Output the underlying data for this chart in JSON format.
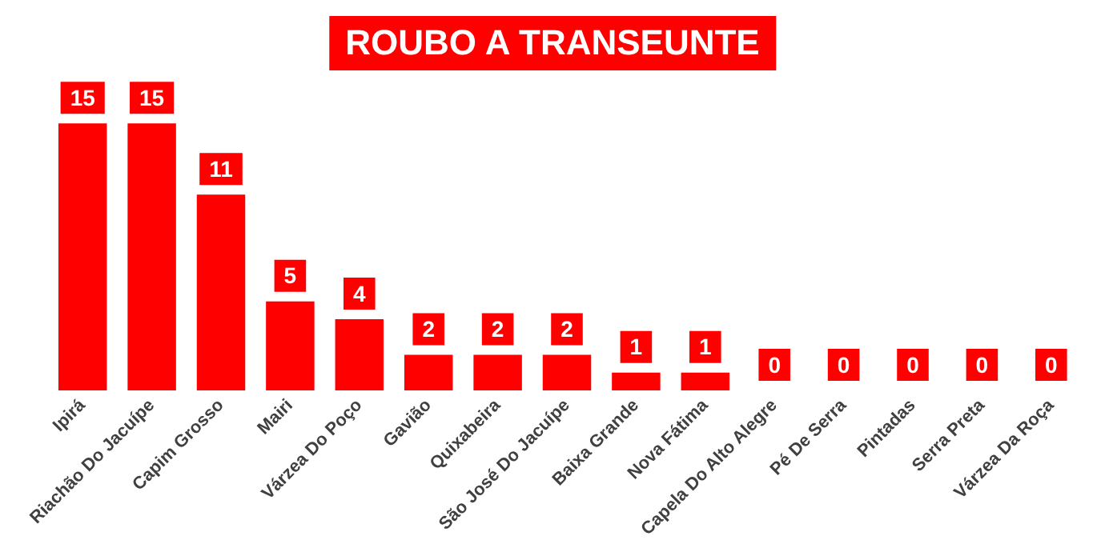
{
  "chart_data": {
    "type": "bar",
    "title": "ROUBO A TRANSEUNTE",
    "categories": [
      "Ipirá",
      "Riachão Do Jacuípe",
      "Capim Grosso",
      "Mairi",
      "Várzea Do Poço",
      "Gavião",
      "Quixabeira",
      "São José Do Jacuípe",
      "Baixa Grande",
      "Nova Fátima",
      "Capela Do Alto Alegre",
      "Pé De Serra",
      "Pintadas",
      "Serra Preta",
      "Várzea Da Roça"
    ],
    "values": [
      15,
      15,
      11,
      5,
      4,
      2,
      2,
      2,
      1,
      1,
      0,
      0,
      0,
      0,
      0
    ],
    "color": "#ff0000",
    "data_labels": true,
    "grid": false,
    "legend": false
  }
}
